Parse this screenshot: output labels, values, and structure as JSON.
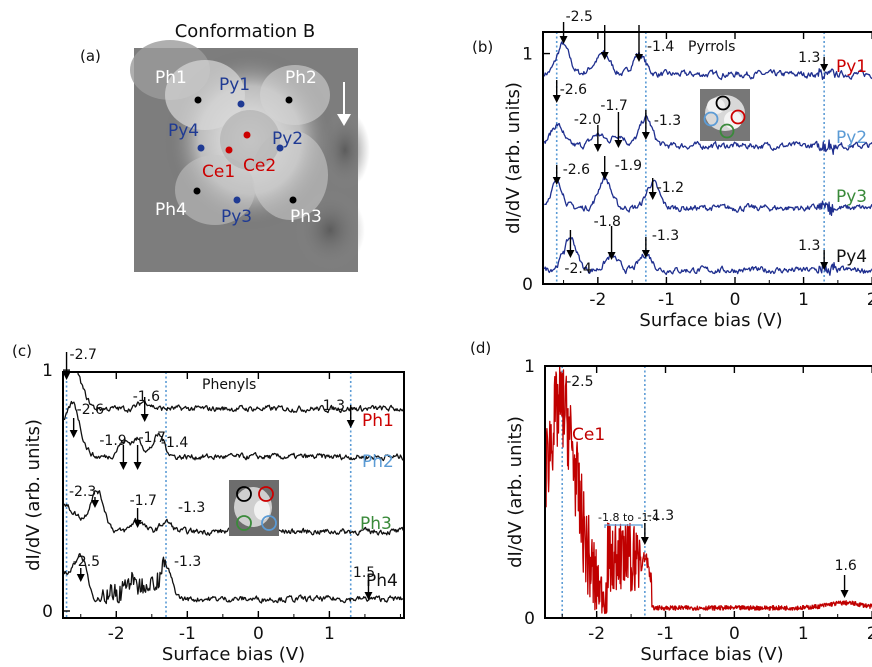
{
  "chart_data": [
    {
      "panel": "(a)",
      "type": "other",
      "title": "Conformation B",
      "sites": [
        {
          "label": "Ph1",
          "color": "#ffffff",
          "dot": "#000000"
        },
        {
          "label": "Py1",
          "color": "#1f3a93",
          "dot": "#1f3a93"
        },
        {
          "label": "Ph2",
          "color": "#ffffff",
          "dot": "#000000"
        },
        {
          "label": "Py4",
          "color": "#1f3a93",
          "dot": "#1f3a93"
        },
        {
          "label": "Py2",
          "color": "#1f3a93",
          "dot": "#1f3a93"
        },
        {
          "label": "Ce1",
          "color": "#cc0000",
          "dot": "#cc0000"
        },
        {
          "label": "Ce2",
          "color": "#cc0000",
          "dot": "#cc0000"
        },
        {
          "label": "Ph4",
          "color": "#ffffff",
          "dot": "#000000"
        },
        {
          "label": "Py3",
          "color": "#1f3a93",
          "dot": "#1f3a93"
        },
        {
          "label": "Ph3",
          "color": "#ffffff",
          "dot": "#000000"
        }
      ]
    },
    {
      "panel": "(b)",
      "type": "line",
      "title": "Pyrrols",
      "xlabel": "Surface bias (V)",
      "ylabel": "dI/dV (arb. units)",
      "xlim": [
        -2.8,
        2.1
      ],
      "ylim": [
        0,
        1.15
      ],
      "xticks": [
        "-2",
        "-1",
        "0",
        "1",
        "2"
      ],
      "yticks": [
        "0",
        "1"
      ],
      "vlines": [
        -2.6,
        -1.3,
        1.3
      ],
      "series": [
        {
          "name": "Py1",
          "color": "#cc0000",
          "trace_color": "#1f2f8f",
          "offset": 0.85,
          "peaks": [
            [
              -2.5,
              0.12
            ],
            [
              -2.05,
              0.03
            ],
            [
              -1.9,
              0.08
            ],
            [
              -1.4,
              0.09
            ]
          ]
        },
        {
          "name": "Py2",
          "color": "#5b9bd5",
          "trace_color": "#1f2f8f",
          "offset": 0.54,
          "peaks": [
            [
              -2.6,
              0.08
            ],
            [
              -2.0,
              0.05
            ],
            [
              -1.7,
              0.05
            ],
            [
              -1.3,
              0.12
            ]
          ]
        },
        {
          "name": "Py3",
          "color": "#3a8a3a",
          "trace_color": "#1f2f8f",
          "offset": 0.27,
          "peaks": [
            [
              -2.6,
              0.1
            ],
            [
              -1.9,
              0.13
            ],
            [
              -1.2,
              0.11
            ]
          ]
        },
        {
          "name": "Py4",
          "color": "#111111",
          "trace_color": "#1f2f8f",
          "offset": 0.0,
          "peaks": [
            [
              -2.4,
              0.14
            ],
            [
              -1.8,
              0.06
            ],
            [
              -1.3,
              0.07
            ]
          ]
        }
      ],
      "annotations": [
        "-2.5",
        "-1.4",
        "-2.6",
        "-1.7",
        "-2.0",
        "-1.3",
        "-2.6",
        "-1.9",
        "-1.2",
        "-1.8",
        "-1.3",
        "-2.4",
        "1.3",
        "1.3"
      ]
    },
    {
      "panel": "(c)",
      "type": "line",
      "title": "Phenyls",
      "xlabel": "Surface bias (V)",
      "ylabel": "dI/dV (arb. units)",
      "xlim": [
        -2.75,
        2.05
      ],
      "ylim": [
        0,
        1.15
      ],
      "xticks": [
        "-2",
        "-1",
        "0",
        "1"
      ],
      "yticks": [
        "0",
        "1"
      ],
      "vlines": [
        -2.7,
        -1.3,
        1.3
      ],
      "series": [
        {
          "name": "Ph1",
          "color": "#cc0000",
          "trace_color": "#111111",
          "offset": 0.84
        },
        {
          "name": "Ph2",
          "color": "#5b9bd5",
          "trace_color": "#111111",
          "offset": 0.64
        },
        {
          "name": "Ph3",
          "color": "#3a8a3a",
          "trace_color": "#111111",
          "offset": 0.33
        },
        {
          "name": "Ph4",
          "color": "#111111",
          "trace_color": "#111111",
          "offset": 0.05
        }
      ],
      "annotations": [
        "-2.7",
        "-1.6",
        "-2.6",
        "-1.9",
        "-1.7",
        "-1.4",
        "-2.3",
        "-1.7",
        "-1.3",
        "-2.5",
        "-1.3",
        "1.3",
        "1.5"
      ]
    },
    {
      "panel": "(d)",
      "type": "line",
      "xlabel": "Surface bias (V)",
      "ylabel": "dI/dV (arb. units)",
      "xlim": [
        -2.75,
        2.1
      ],
      "ylim": [
        0,
        1
      ],
      "xticks": [
        "-2",
        "-1",
        "0",
        "1",
        "2"
      ],
      "yticks": [
        "0",
        "1"
      ],
      "vlines": [
        -2.5,
        -1.3
      ],
      "series": [
        {
          "name": "Ce1",
          "color": "#c00000"
        }
      ],
      "annotations": [
        "-2.5",
        "-1.8 to -1.4",
        "-1.3",
        "1.6"
      ]
    }
  ]
}
